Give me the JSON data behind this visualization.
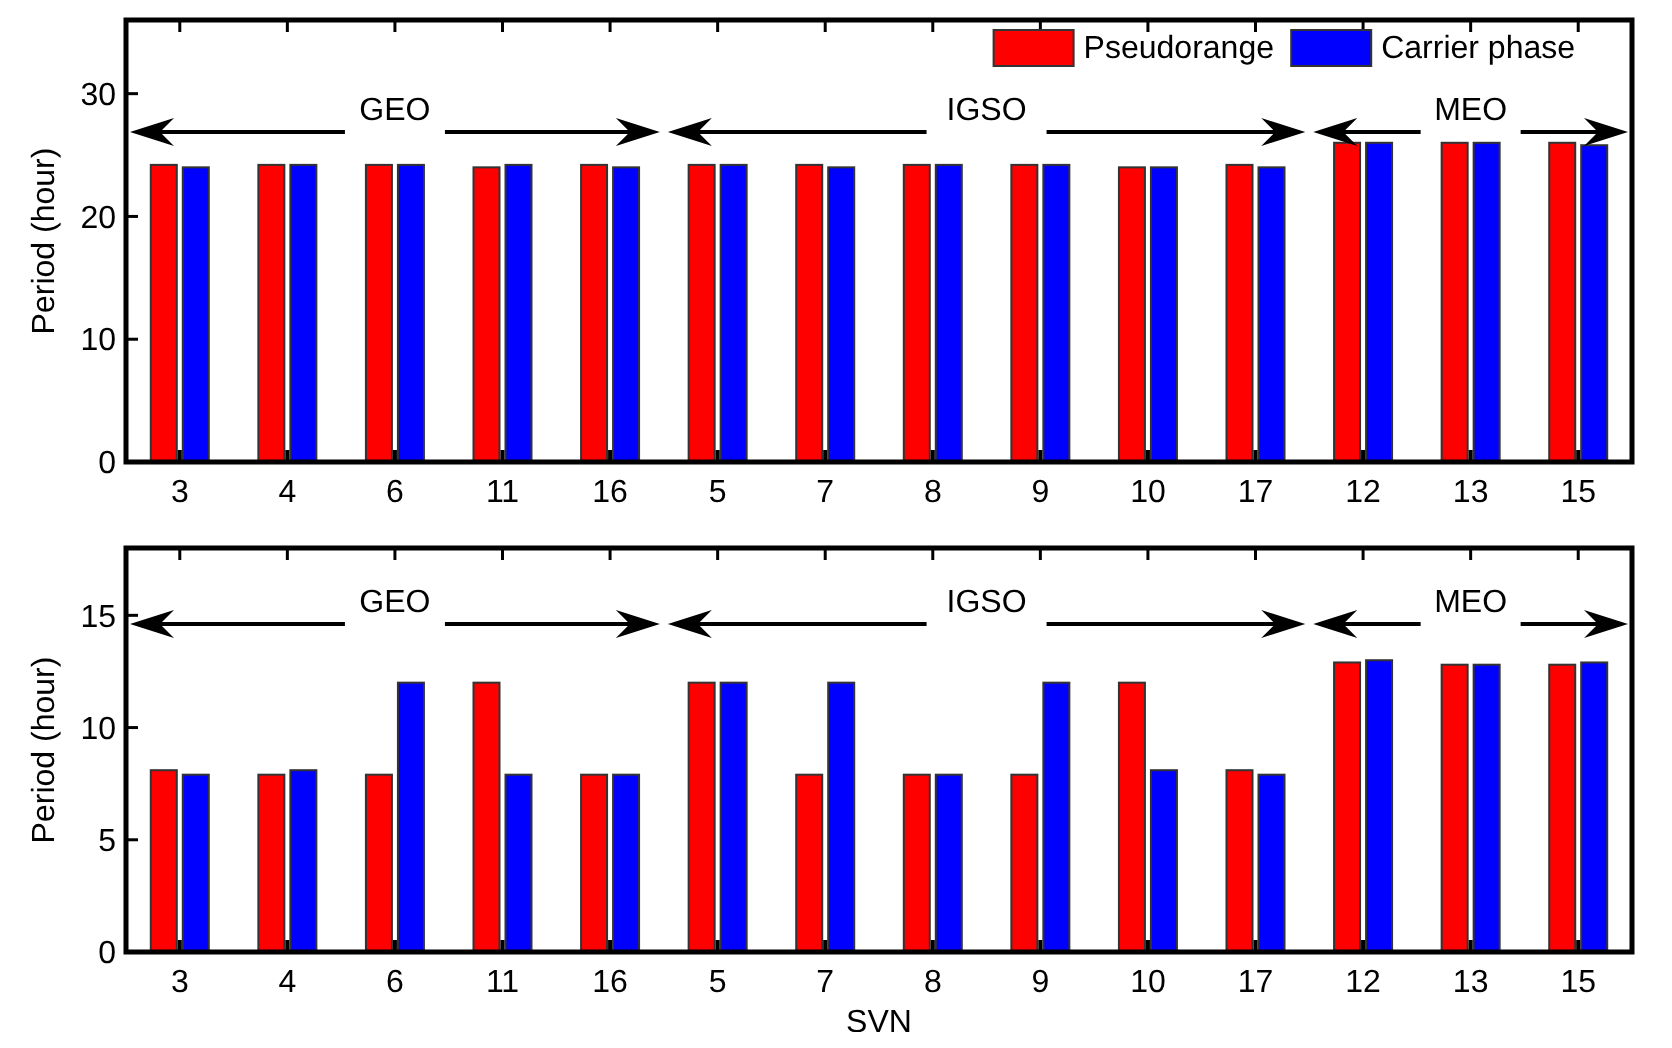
{
  "chart_data": [
    {
      "type": "bar",
      "categories": [
        "3",
        "4",
        "6",
        "11",
        "16",
        "5",
        "7",
        "8",
        "9",
        "10",
        "17",
        "12",
        "13",
        "15"
      ],
      "ylabel": "Period (hour)",
      "ylim": [
        0,
        36
      ],
      "yticks": [
        0,
        10,
        20,
        30
      ],
      "legend": "top right",
      "annotations": [
        "GEO",
        "IGSO",
        "MEO"
      ],
      "series": [
        {
          "name": "Pseudorange",
          "color": "#ff0000",
          "values": [
            24.2,
            24.2,
            24.2,
            24.0,
            24.2,
            24.2,
            24.2,
            24.2,
            24.2,
            24.0,
            24.2,
            26.0,
            26.0,
            26.0
          ]
        },
        {
          "name": "Carrier phase",
          "color": "#0000ff",
          "values": [
            24.0,
            24.2,
            24.2,
            24.2,
            24.0,
            24.2,
            24.0,
            24.2,
            24.2,
            24.0,
            24.0,
            26.0,
            26.0,
            25.8
          ]
        }
      ]
    },
    {
      "type": "bar",
      "categories": [
        "3",
        "4",
        "6",
        "11",
        "16",
        "5",
        "7",
        "8",
        "9",
        "10",
        "17",
        "12",
        "13",
        "15"
      ],
      "xlabel": "SVN",
      "ylabel": "Period (hour)",
      "ylim": [
        0,
        18
      ],
      "yticks": [
        0,
        5,
        10,
        15
      ],
      "annotations": [
        "GEO",
        "IGSO",
        "MEO"
      ],
      "series": [
        {
          "color": "#ff0000",
          "values": [
            8.1,
            7.9,
            7.9,
            12.0,
            7.9,
            12.0,
            7.9,
            7.9,
            7.9,
            12.0,
            8.1,
            12.9,
            12.8,
            12.8
          ]
        },
        {
          "color": "#0000ff",
          "values": [
            7.9,
            8.1,
            12.0,
            7.9,
            7.9,
            12.0,
            12.0,
            7.9,
            12.0,
            8.1,
            7.9,
            13.0,
            12.8,
            12.9
          ]
        }
      ]
    }
  ]
}
